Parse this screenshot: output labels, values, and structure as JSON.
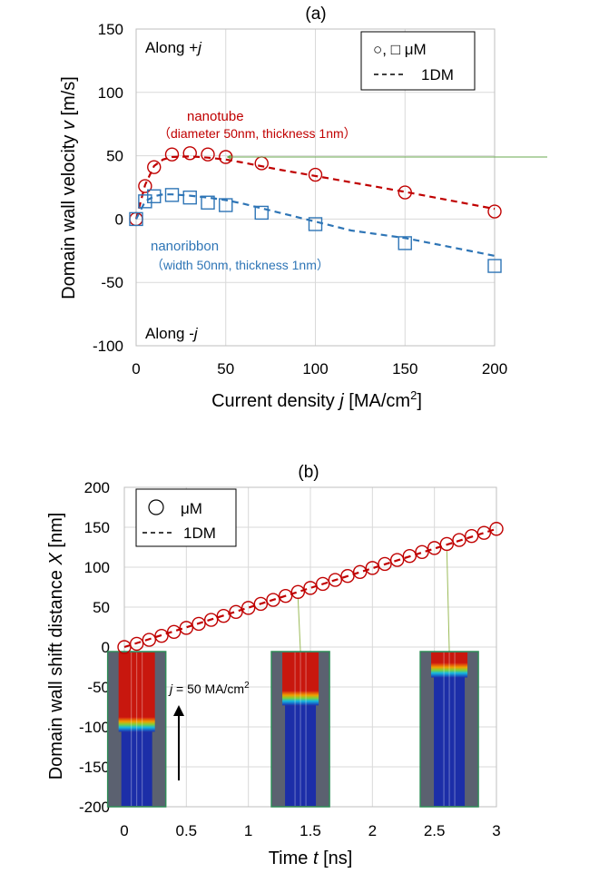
{
  "chart_data": [
    {
      "type": "scatter",
      "panel_label": "(a)",
      "xlabel": "Current density j [MA/cm2]",
      "xlabel_parts": {
        "pre": "Current density ",
        "var": "j",
        "post": " [MA/cm",
        "sup": "2",
        "end": "]"
      },
      "ylabel": "Domain wall velocity v [m/s]",
      "ylabel_parts": {
        "pre": "Domain wall velocity ",
        "var": "v",
        "post": " [m/s]"
      },
      "xlim": [
        0,
        200
      ],
      "ylim": [
        -100,
        150
      ],
      "xticks": [
        "0",
        "50",
        "100",
        "150",
        "200"
      ],
      "yticks": [
        "-100",
        "-50",
        "0",
        "50",
        "100",
        "150"
      ],
      "grid": true,
      "legend": {
        "position": "top-right",
        "markers_label": "○, □  μM",
        "line_label": "1DM"
      },
      "annotations": {
        "top_left_pre": "Along +",
        "top_left_var": "j",
        "bottom_left_pre": "Along -",
        "bottom_left_var": "j",
        "nanotube_title": "nanotube",
        "nanotube_detail": "（diameter 50nm, thickness 1nm）",
        "nanoribbon_title": "nanoribbon",
        "nanoribbon_detail": "（width 50nm, thickness 1nm）"
      },
      "series": [
        {
          "name": "nanotube",
          "marker": "circle",
          "color": "#c00000",
          "x": [
            0,
            5,
            10,
            20,
            30,
            40,
            50,
            70,
            100,
            150,
            200
          ],
          "y": [
            0,
            26,
            41,
            51,
            52,
            51,
            49,
            44,
            35,
            21,
            6
          ]
        },
        {
          "name": "nanoribbon",
          "marker": "square",
          "color": "#2e75b6",
          "x": [
            0,
            5,
            10,
            20,
            30,
            40,
            50,
            70,
            100,
            150,
            200
          ],
          "y": [
            0,
            14,
            18,
            19,
            17,
            13,
            11,
            5,
            -4,
            -19,
            -37
          ]
        }
      ],
      "model_lines": [
        {
          "name": "nanotube 1DM",
          "color": "#c00000",
          "x": [
            0,
            5,
            10,
            15,
            20,
            30,
            40,
            50,
            60,
            80,
            100,
            120,
            150,
            200
          ],
          "y": [
            0,
            27,
            42,
            47,
            49,
            49.5,
            48.5,
            47,
            44.5,
            39,
            34,
            29,
            21.5,
            8
          ]
        },
        {
          "name": "nanoribbon 1DM",
          "color": "#2e75b6",
          "x": [
            0,
            5,
            10,
            15,
            20,
            30,
            40,
            50,
            60,
            80,
            100,
            120,
            150,
            200
          ],
          "y": [
            0,
            14,
            18,
            19.5,
            19.5,
            18.5,
            17,
            15,
            12,
            5,
            -2,
            -9,
            -15,
            -29
          ]
        }
      ]
    },
    {
      "type": "scatter",
      "panel_label": "(b)",
      "xlabel": "Time t [ns]",
      "xlabel_parts": {
        "pre": "Time ",
        "var": "t",
        "post": " [ns]"
      },
      "ylabel": "Domain wall shift distance X [nm]",
      "ylabel_parts": {
        "pre": "Domain wall shift distance ",
        "var": "X",
        "post": " [nm]"
      },
      "xlim": [
        0,
        3
      ],
      "ylim": [
        -200,
        200
      ],
      "xticks": [
        "0",
        "0.5",
        "1",
        "1.5",
        "2",
        "2.5",
        "3"
      ],
      "yticks": [
        "-200",
        "-150",
        "-100",
        "-50",
        "0",
        "50",
        "100",
        "150",
        "200"
      ],
      "grid": true,
      "legend": {
        "position": "top-left",
        "markers_label": "μM",
        "line_label": "1DM"
      },
      "annotations": {
        "current_var": "j",
        "current_text": " = 50 MA/cm",
        "current_sup": "2"
      },
      "series": [
        {
          "name": "μM",
          "marker": "circle",
          "color": "#c00000",
          "x": [
            0,
            0.1,
            0.2,
            0.3,
            0.4,
            0.5,
            0.6,
            0.7,
            0.8,
            0.9,
            1.0,
            1.1,
            1.2,
            1.3,
            1.4,
            1.5,
            1.6,
            1.7,
            1.8,
            1.9,
            2.0,
            2.1,
            2.2,
            2.3,
            2.4,
            2.5,
            2.6,
            2.7,
            2.8,
            2.9,
            3.0
          ],
          "y": [
            0,
            4,
            9,
            14,
            19,
            24,
            29,
            34,
            39,
            44,
            49,
            54,
            59,
            64,
            69,
            74,
            79,
            84,
            89,
            94,
            99,
            104,
            109,
            114,
            119,
            124,
            129,
            134,
            139,
            143,
            148
          ]
        }
      ],
      "model_lines": [
        {
          "name": "1DM",
          "color": "#c00000",
          "x": [
            0,
            3
          ],
          "y": [
            0,
            148
          ]
        }
      ],
      "inset_times": [
        0.1,
        1.42,
        2.62
      ],
      "inset_wall_positions": [
        0.47,
        0.3,
        0.12
      ]
    }
  ]
}
